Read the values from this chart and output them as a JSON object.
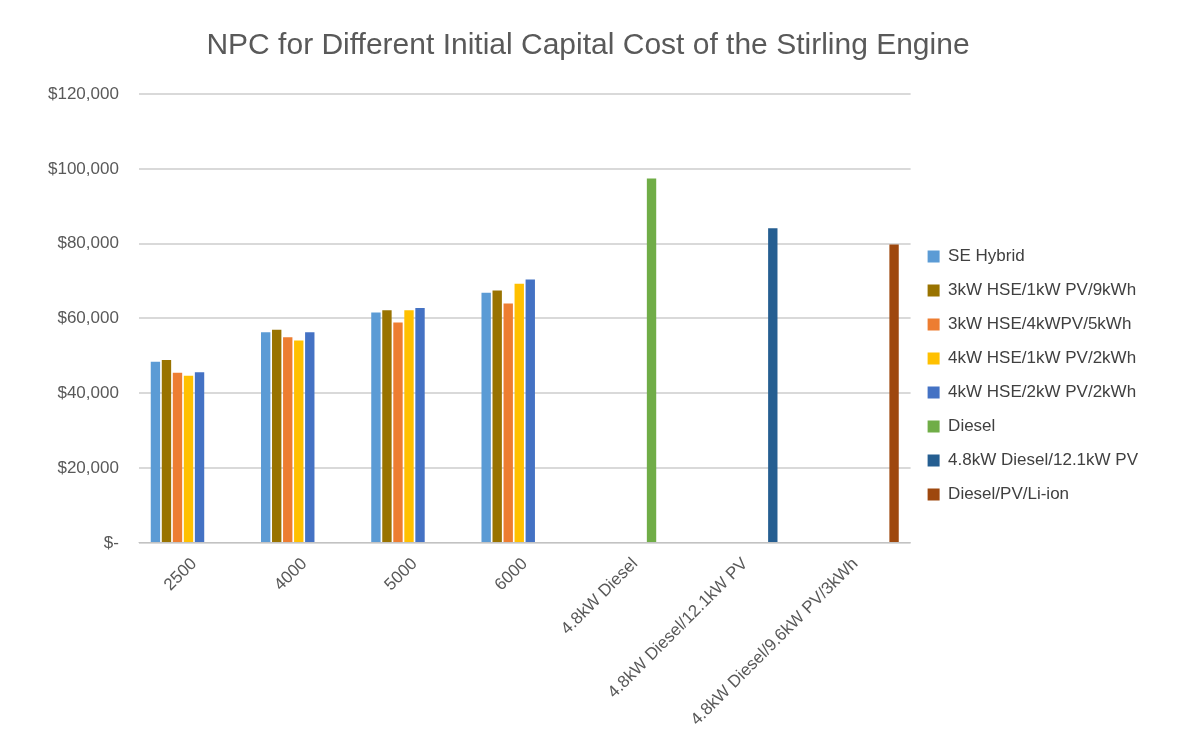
{
  "chart_data": {
    "type": "bar",
    "title": "NPC for Different Initial Capital Cost of the Stirling Engine",
    "categories": [
      "2500",
      "4000",
      "5000",
      "6000",
      "4.8kW Diesel",
      "4.8kW Diesel/12.1kW PV",
      "4.8kW Diesel/9.6kW PV/3kWh"
    ],
    "series": [
      {
        "name": "SE Hybrid",
        "color": "#5b9bd5",
        "values": [
          48400,
          56300,
          61600,
          66900,
          null,
          null,
          null
        ]
      },
      {
        "name": "3kW HSE/1kW PV/9kWh",
        "color": "#997300",
        "values": [
          48900,
          57000,
          62200,
          67500,
          null,
          null,
          null
        ]
      },
      {
        "name": "3kW HSE/4kWPV/5kWh",
        "color": "#ed7d31",
        "values": [
          45500,
          55000,
          58900,
          64000,
          null,
          null,
          null
        ]
      },
      {
        "name": "4kW HSE/1kW PV/2kWh",
        "color": "#ffc000",
        "values": [
          44700,
          54100,
          62200,
          69300,
          null,
          null,
          null
        ]
      },
      {
        "name": "4kW HSE/2kW PV/2kWh",
        "color": "#4472c4",
        "values": [
          45600,
          56300,
          62800,
          70400,
          null,
          null,
          null
        ]
      },
      {
        "name": "Diesel",
        "color": "#70ad47",
        "values": [
          null,
          null,
          null,
          null,
          97400,
          null,
          null
        ]
      },
      {
        "name": "4.8kW Diesel/12.1kW PV",
        "color": "#255e91",
        "values": [
          null,
          null,
          null,
          null,
          null,
          84100,
          null
        ]
      },
      {
        "name": "Diesel/PV/Li-ion",
        "color": "#9e480e",
        "values": [
          null,
          null,
          null,
          null,
          null,
          null,
          79800
        ]
      }
    ],
    "ylim": [
      0,
      120000
    ],
    "yticks": [
      {
        "value": 0,
        "label": "$-"
      },
      {
        "value": 20000,
        "label": "$20,000"
      },
      {
        "value": 40000,
        "label": "$40,000"
      },
      {
        "value": 60000,
        "label": "$60,000"
      },
      {
        "value": 80000,
        "label": "$80,000"
      },
      {
        "value": 100000,
        "label": "$100,000"
      },
      {
        "value": 120000,
        "label": "$120,000"
      }
    ],
    "grid": "y",
    "legend": "right"
  }
}
